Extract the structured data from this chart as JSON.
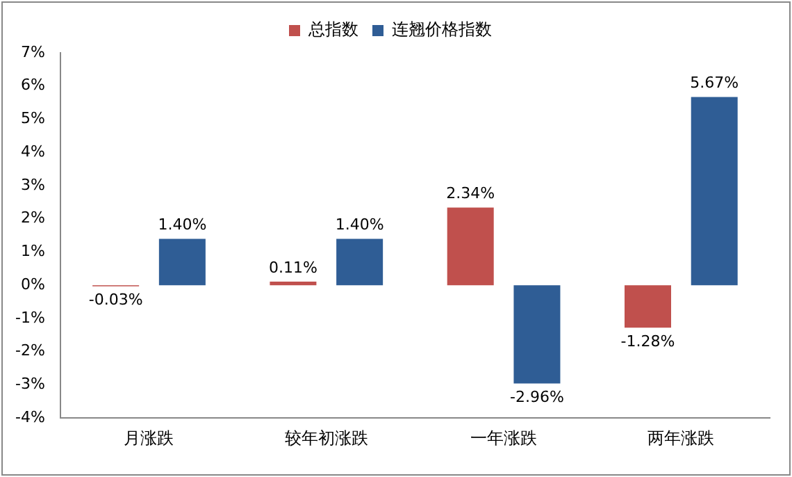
{
  "chart_data": {
    "type": "bar",
    "categories": [
      "月涨跌",
      "较年初涨跌",
      "一年涨跌",
      "两年涨跌"
    ],
    "series": [
      {
        "name": "总指数",
        "color": "#c0504d",
        "values": [
          -0.03,
          0.11,
          2.34,
          -1.28
        ],
        "value_labels": [
          "-0.03%",
          "0.11%",
          "2.34%",
          "-1.28%"
        ]
      },
      {
        "name": "连翘价格指数",
        "color": "#2f5d95",
        "values": [
          1.4,
          1.4,
          -2.96,
          5.67
        ],
        "value_labels": [
          "1.40%",
          "1.40%",
          "-2.96%",
          "5.67%"
        ]
      }
    ],
    "ylim": [
      -4,
      7
    ],
    "yticks": [
      {
        "value": -4,
        "label": "-4%"
      },
      {
        "value": -3,
        "label": "-3%"
      },
      {
        "value": -2,
        "label": "-2%"
      },
      {
        "value": -1,
        "label": "-1%"
      },
      {
        "value": 0,
        "label": "0%"
      },
      {
        "value": 1,
        "label": "1%"
      },
      {
        "value": 2,
        "label": "2%"
      },
      {
        "value": 3,
        "label": "3%"
      },
      {
        "value": 4,
        "label": "4%"
      },
      {
        "value": 5,
        "label": "5%"
      },
      {
        "value": 6,
        "label": "6%"
      },
      {
        "value": 7,
        "label": "7%"
      }
    ],
    "grid": false,
    "legend": "top"
  }
}
